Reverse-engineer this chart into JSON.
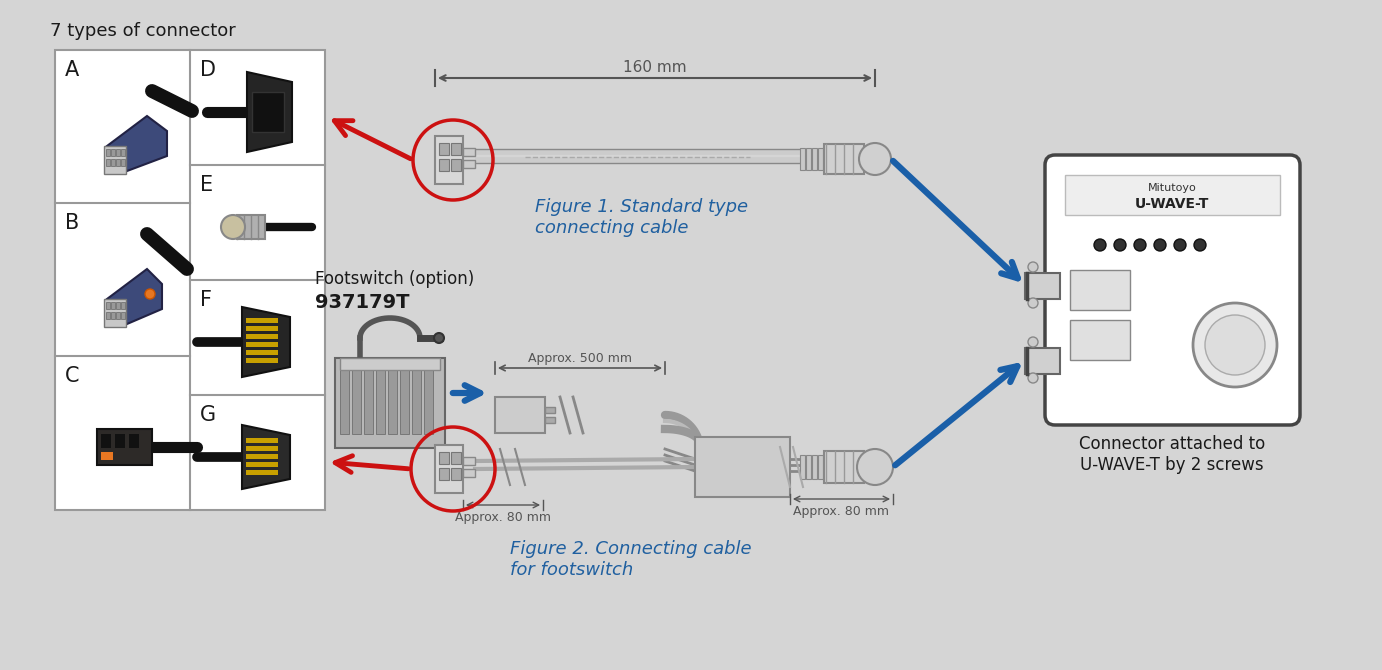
{
  "bg_color": "#d5d5d5",
  "title": "7 types of connector",
  "title_color": "#1a1a1a",
  "title_fontsize": 13,
  "fig1_label": "Figure 1. Standard type\nconnecting cable",
  "fig2_label": "Figure 2. Connecting cable\nfor footswitch",
  "footswitch_label": "Footswitch (option)",
  "footswitch_part": "937179T",
  "connector_label": "Connector attached to\nU-WAVE-T by 2 screws",
  "dim_160mm": "160 mm",
  "dim_500mm": "Approx. 500 mm",
  "dim_80mm_a": "Approx. 80 mm",
  "dim_80mm_b": "Approx. 80 mm",
  "connector_labels": [
    "A",
    "B",
    "C",
    "D",
    "E",
    "F",
    "G"
  ],
  "red_arrow_color": "#cc1111",
  "blue_arrow_color": "#1a5fa8",
  "text_blue": "#2060a0",
  "text_dark": "#1a1a1a",
  "grid_lw": 1.5,
  "cable_color": "#bbbbbb",
  "cable_dark": "#888888",
  "cable_ec": "#777777",
  "dim_color": "#555555",
  "connector_ec": "#666666"
}
